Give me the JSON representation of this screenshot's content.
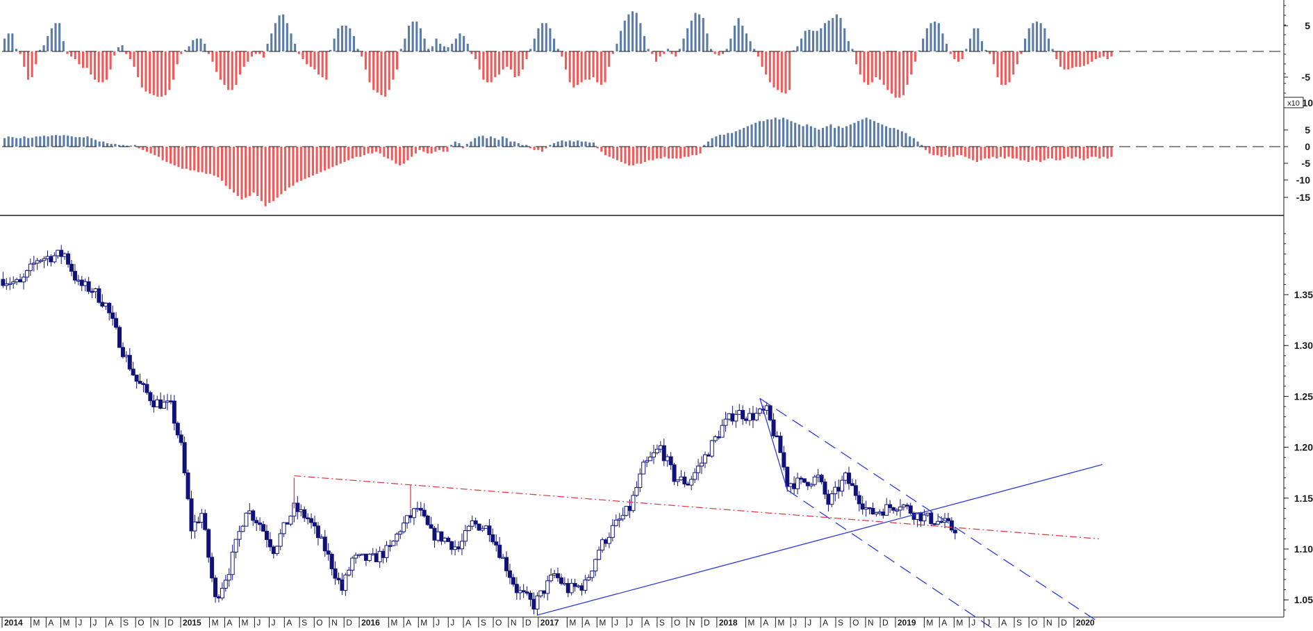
{
  "chart_data": [
    {
      "type": "bar",
      "panel": "upper-oscillator",
      "zero_line": "dashed",
      "y_ticks": [
        "5",
        "-5"
      ],
      "scale_badge": "x10",
      "colors": {
        "positive": "#5b7ca8",
        "negative": "#f25a5a"
      },
      "values": [
        2.5,
        3.5,
        3.5,
        0.5,
        -0.5,
        -3.0,
        -5.5,
        -5.0,
        -2.5,
        0.3,
        1.2,
        3.0,
        4.5,
        5.5,
        5.5,
        2.0,
        -0.5,
        -1.0,
        -1.5,
        -2.5,
        -3.2,
        -3.2,
        -4.5,
        -5.5,
        -6.0,
        -6.0,
        -5.5,
        -3.5,
        -0.8,
        0.8,
        1.2,
        -0.5,
        -1.5,
        -3.0,
        -5.0,
        -7.0,
        -7.8,
        -8.2,
        -8.5,
        -8.8,
        -8.8,
        -8.5,
        -7.5,
        -5.5,
        -2.5,
        -0.5,
        0.3,
        1.0,
        2.2,
        2.5,
        2.5,
        1.5,
        -0.5,
        -2.0,
        -4.0,
        -5.5,
        -6.5,
        -7.5,
        -7.5,
        -6.5,
        -4.5,
        -3.0,
        -2.0,
        -1.0,
        -0.5,
        -0.5,
        -1.2,
        1.5,
        3.5,
        5.5,
        7.0,
        7.2,
        5.5,
        3.5,
        1.5,
        -0.5,
        -1.5,
        -2.5,
        -3.0,
        -3.5,
        -4.5,
        -5.0,
        -5.5,
        0.3,
        2.5,
        4.5,
        5.0,
        5.0,
        4.5,
        3.0,
        0.5,
        -1.0,
        -3.5,
        -6.0,
        -7.5,
        -8.0,
        -8.5,
        -8.8,
        -7.5,
        -5.5,
        -3.5,
        0.5,
        2.5,
        5.0,
        5.8,
        5.8,
        4.5,
        2.5,
        0.5,
        1.0,
        2.5,
        1.5,
        1.0,
        0.8,
        1.5,
        2.5,
        3.5,
        3.0,
        1.5,
        -0.5,
        -1.5,
        -3.5,
        -5.5,
        -6.0,
        -6.0,
        -5.0,
        -4.5,
        -3.5,
        -3.0,
        -3.5,
        -5.0,
        -4.8,
        -3.5,
        -1.5,
        0.5,
        2.5,
        4.5,
        5.5,
        5.5,
        4.5,
        2.5,
        0.5,
        -1.0,
        -3.5,
        -6.0,
        -7.0,
        -6.5,
        -6.0,
        -5.5,
        -5.5,
        -5.0,
        -6.0,
        -6.5,
        -6.0,
        -3.0,
        -0.5,
        1.5,
        4.0,
        6.0,
        7.2,
        7.8,
        7.5,
        5.5,
        3.0,
        0.5,
        -0.5,
        -2.0,
        -1.0,
        -0.5,
        0.5,
        -0.5,
        -1.0,
        0.5,
        2.5,
        4.5,
        6.0,
        7.5,
        7.2,
        6.5,
        3.5,
        0.5,
        -0.5,
        -0.8,
        -0.5,
        0.5,
        2.5,
        5.0,
        6.5,
        5.0,
        3.5,
        2.0,
        0.5,
        -1.0,
        -3.0,
        -4.5,
        -6.0,
        -7.0,
        -7.5,
        -8.0,
        -8.2,
        -7.5,
        0.2,
        1.0,
        2.5,
        4.0,
        4.2,
        4.0,
        4.0,
        4.5,
        5.5,
        6.0,
        6.5,
        7.2,
        6.5,
        4.5,
        2.0,
        0.5,
        -2.5,
        -4.5,
        -6.0,
        -6.5,
        -6.0,
        -5.0,
        -5.5,
        -6.5,
        -7.5,
        -8.2,
        -9.0,
        -9.0,
        -8.5,
        -6.5,
        -4.5,
        -2.0,
        0.2,
        2.5,
        4.5,
        5.5,
        5.8,
        5.5,
        3.5,
        1.5,
        -0.5,
        -1.5,
        -2.0,
        -1.5,
        0.5,
        2.5,
        4.5,
        4.5,
        2.0,
        0.3,
        -0.5,
        -2.5,
        -5.0,
        -6.5,
        -6.5,
        -6.0,
        -4.5,
        -2.5,
        -0.5,
        2.5,
        4.5,
        5.5,
        5.8,
        5.5,
        4.5,
        2.5,
        0.5,
        -1.5,
        -3.0,
        -3.5,
        -3.5,
        -3.2,
        -3.0,
        -3.0,
        -2.8,
        -2.5,
        -2.0,
        -1.5,
        -1.2,
        -1.0,
        -1.5,
        -1.0
      ]
    },
    {
      "type": "bar",
      "panel": "lower-oscillator",
      "zero_line": "dashed",
      "y_ticks": [
        "5",
        "0",
        "-5",
        "-10",
        "-15"
      ],
      "colors": {
        "positive": "#5b7ca8",
        "negative": "#f25a5a"
      },
      "values": [
        2.5,
        3.0,
        2.8,
        2.5,
        2.5,
        3.0,
        2.5,
        2.6,
        3.0,
        3.0,
        3.2,
        3.0,
        3.3,
        3.4,
        3.2,
        3.4,
        3.2,
        3.0,
        2.8,
        2.8,
        2.7,
        3.0,
        2.5,
        2.0,
        1.5,
        1.5,
        1.0,
        0.8,
        0.8,
        0.5,
        0.5,
        0.3,
        0.3,
        0.5,
        -0.5,
        -1.0,
        -1.5,
        -2.0,
        -2.5,
        -3.0,
        -4.0,
        -4.5,
        -5.0,
        -5.5,
        -6.0,
        -6.5,
        -6.5,
        -7.0,
        -7.0,
        -7.5,
        -7.5,
        -8.0,
        -8.0,
        -8.5,
        -9.0,
        -10.0,
        -11.5,
        -12.5,
        -13.5,
        -14.5,
        -15.5,
        -15.0,
        -14.5,
        -13.5,
        -14.5,
        -16.0,
        -17.5,
        -16.5,
        -16.0,
        -15.0,
        -14.0,
        -13.0,
        -12.0,
        -11.5,
        -10.5,
        -10.0,
        -9.5,
        -9.0,
        -8.5,
        -8.0,
        -7.5,
        -7.0,
        -6.5,
        -6.0,
        -5.5,
        -5.0,
        -4.5,
        -4.0,
        -3.5,
        -3.0,
        -3.0,
        -2.5,
        -2.0,
        -2.0,
        -1.5,
        -2.0,
        -3.0,
        -3.5,
        -4.0,
        -5.0,
        -5.5,
        -5.0,
        -4.0,
        -3.0,
        -2.0,
        -1.0,
        -1.5,
        -2.0,
        -2.0,
        -1.5,
        -1.0,
        -1.5,
        -1.5,
        0.5,
        1.5,
        1.0,
        -0.5,
        0.8,
        1.5,
        2.5,
        3.0,
        3.2,
        2.5,
        3.0,
        2.5,
        2.0,
        3.0,
        2.5,
        1.5,
        1.5,
        1.0,
        0.5,
        0.5,
        -0.5,
        -1.0,
        -1.0,
        -1.5,
        -0.5,
        0.5,
        1.0,
        1.5,
        1.8,
        1.5,
        1.8,
        1.5,
        1.8,
        1.5,
        1.5,
        1.2,
        1.2,
        -0.5,
        -1.5,
        -2.5,
        -3.0,
        -3.5,
        -4.0,
        -4.5,
        -5.0,
        -5.5,
        -5.5,
        -5.0,
        -5.0,
        -4.5,
        -4.0,
        -4.0,
        -3.5,
        -3.5,
        -3.0,
        -3.5,
        -3.5,
        -3.5,
        -3.5,
        -3.0,
        -3.0,
        -2.5,
        -2.5,
        -2.0,
        0.5,
        1.5,
        2.5,
        3.0,
        3.5,
        3.5,
        4.0,
        4.0,
        4.5,
        5.0,
        5.5,
        6.0,
        6.5,
        7.0,
        7.5,
        7.5,
        8.0,
        8.0,
        8.5,
        8.0,
        8.5,
        8.0,
        7.5,
        7.0,
        6.5,
        6.0,
        6.5,
        6.0,
        5.5,
        5.0,
        5.5,
        6.0,
        6.5,
        5.5,
        6.0,
        5.5,
        6.0,
        6.5,
        7.0,
        7.5,
        8.0,
        8.5,
        8.0,
        7.5,
        7.0,
        6.5,
        6.0,
        5.5,
        5.5,
        5.0,
        4.5,
        4.0,
        3.0,
        2.5,
        1.5,
        0.5,
        -1.0,
        -2.0,
        -2.5,
        -2.5,
        -3.0,
        -2.5,
        -3.0,
        -3.0,
        -2.5,
        -2.5,
        -3.0,
        -3.5,
        -4.0,
        -4.5,
        -4.0,
        -3.5,
        -3.5,
        -3.0,
        -3.5,
        -3.0,
        -3.5,
        -3.0,
        -3.5,
        -3.5,
        -4.0,
        -4.0,
        -4.5,
        -4.0,
        -4.0,
        -4.5,
        -4.0,
        -3.5,
        -3.5,
        -4.0,
        -4.0,
        -3.5,
        -3.0,
        -3.5,
        -3.0,
        -3.5,
        -4.0,
        -3.5,
        -3.0,
        -3.0,
        -3.5,
        -3.0,
        -3.5,
        -3.0
      ]
    },
    {
      "type": "candlestick",
      "panel": "price",
      "x_axis_labels": [
        "2014",
        "M",
        "A",
        "M",
        "J",
        "J",
        "A",
        "S",
        "O",
        "N",
        "D",
        "2015",
        "M",
        "A",
        "M",
        "J",
        "J",
        "A",
        "S",
        "O",
        "N",
        "D",
        "2016",
        "M",
        "A",
        "M",
        "J",
        "J",
        "A",
        "S",
        "O",
        "N",
        "D",
        "2017",
        "M",
        "A",
        "M",
        "J",
        "J",
        "A",
        "S",
        "O",
        "N",
        "D",
        "2018",
        "M",
        "A",
        "M",
        "J",
        "J",
        "A",
        "S",
        "O",
        "N",
        "D",
        "2019",
        "M",
        "A",
        "M",
        "J",
        "J",
        "A",
        "S",
        "O",
        "N",
        "D",
        "2020"
      ],
      "y_ticks": [
        "1.35",
        "1.30",
        "1.25",
        "1.20",
        "1.15",
        "1.10",
        "1.05"
      ],
      "close_anchors": [
        [
          "2014-01-03",
          1.365
        ],
        [
          "2014-02-07",
          1.36
        ],
        [
          "2014-03-14",
          1.385
        ],
        [
          "2014-05-09",
          1.39
        ],
        [
          "2014-06-06",
          1.36
        ],
        [
          "2014-07-04",
          1.355
        ],
        [
          "2014-08-01",
          1.34
        ],
        [
          "2014-09-05",
          1.295
        ],
        [
          "2014-10-03",
          1.265
        ],
        [
          "2014-11-07",
          1.245
        ],
        [
          "2014-12-12",
          1.24
        ],
        [
          "2015-01-02",
          1.2
        ],
        [
          "2015-01-23",
          1.12
        ],
        [
          "2015-02-13",
          1.135
        ],
        [
          "2015-03-13",
          1.05
        ],
        [
          "2015-04-10",
          1.08
        ],
        [
          "2015-05-15",
          1.14
        ],
        [
          "2015-06-12",
          1.125
        ],
        [
          "2015-07-10",
          1.1
        ],
        [
          "2015-08-21",
          1.14
        ],
        [
          "2015-09-18",
          1.13
        ],
        [
          "2015-10-23",
          1.1
        ],
        [
          "2015-11-27",
          1.06
        ],
        [
          "2015-12-18",
          1.09
        ],
        [
          "2016-01-29",
          1.09
        ],
        [
          "2016-03-04",
          1.1
        ],
        [
          "2016-03-25",
          1.12
        ],
        [
          "2016-04-29",
          1.14
        ],
        [
          "2016-05-27",
          1.115
        ],
        [
          "2016-06-24",
          1.11
        ],
        [
          "2016-07-22",
          1.1
        ],
        [
          "2016-08-19",
          1.125
        ],
        [
          "2016-09-23",
          1.12
        ],
        [
          "2016-10-21",
          1.09
        ],
        [
          "2016-11-18",
          1.06
        ],
        [
          "2016-12-23",
          1.045
        ],
        [
          "2017-01-06",
          1.055
        ],
        [
          "2017-02-03",
          1.075
        ],
        [
          "2017-03-03",
          1.06
        ],
        [
          "2017-04-07",
          1.065
        ],
        [
          "2017-05-05",
          1.1
        ],
        [
          "2017-06-02",
          1.12
        ],
        [
          "2017-07-07",
          1.14
        ],
        [
          "2017-08-04",
          1.18
        ],
        [
          "2017-09-08",
          1.2
        ],
        [
          "2017-10-06",
          1.17
        ],
        [
          "2017-11-03",
          1.165
        ],
        [
          "2017-12-01",
          1.185
        ],
        [
          "2018-01-12",
          1.22
        ],
        [
          "2018-02-09",
          1.235
        ],
        [
          "2018-03-09",
          1.23
        ],
        [
          "2018-04-13",
          1.235
        ],
        [
          "2018-05-11",
          1.195
        ],
        [
          "2018-05-25",
          1.165
        ],
        [
          "2018-06-22",
          1.165
        ],
        [
          "2018-07-27",
          1.17
        ],
        [
          "2018-08-17",
          1.145
        ],
        [
          "2018-09-21",
          1.17
        ],
        [
          "2018-10-12",
          1.155
        ],
        [
          "2018-11-09",
          1.135
        ],
        [
          "2018-12-14",
          1.14
        ],
        [
          "2019-01-11",
          1.145
        ],
        [
          "2019-02-08",
          1.135
        ],
        [
          "2019-03-08",
          1.13
        ],
        [
          "2019-04-12",
          1.125
        ],
        [
          "2019-04-26",
          1.12
        ],
        [
          "2019-05-03",
          1.12
        ]
      ],
      "trendlines": [
        {
          "color": "#e33a4a",
          "style": "dash-dot",
          "from": [
            "2015-08-21",
            1.172
          ],
          "to": [
            "2020-02-21",
            1.11
          ]
        },
        {
          "color": "#2b3be0",
          "style": "solid",
          "from": [
            "2016-12-30",
            1.035
          ],
          "to": [
            "2020-02-28",
            1.183
          ]
        },
        {
          "color": "#2b3be0",
          "style": "dashed",
          "from": [
            "2018-03-30",
            1.248
          ],
          "to": [
            "2020-02-21",
            1.028
          ]
        },
        {
          "color": "#2b3be0",
          "style": "dashed",
          "from": [
            "2018-05-25",
            1.158
          ],
          "to": [
            "2019-10-25",
            0.99
          ]
        },
        {
          "color": "#2b3be0",
          "style": "solid",
          "from": [
            "2018-03-30",
            1.248
          ],
          "to": [
            "2018-05-25",
            1.158
          ]
        },
        {
          "color": "#e33a4a",
          "style": "solid",
          "from": [
            "2015-08-21",
            1.17
          ],
          "to": [
            "2015-08-21",
            1.14
          ]
        },
        {
          "color": "#e33a4a",
          "style": "solid",
          "from": [
            "2016-04-15",
            1.163
          ],
          "to": [
            "2016-04-15",
            1.14
          ]
        }
      ],
      "colors": {
        "candle": "#10127a",
        "axis": "#1a1a1a"
      }
    }
  ]
}
